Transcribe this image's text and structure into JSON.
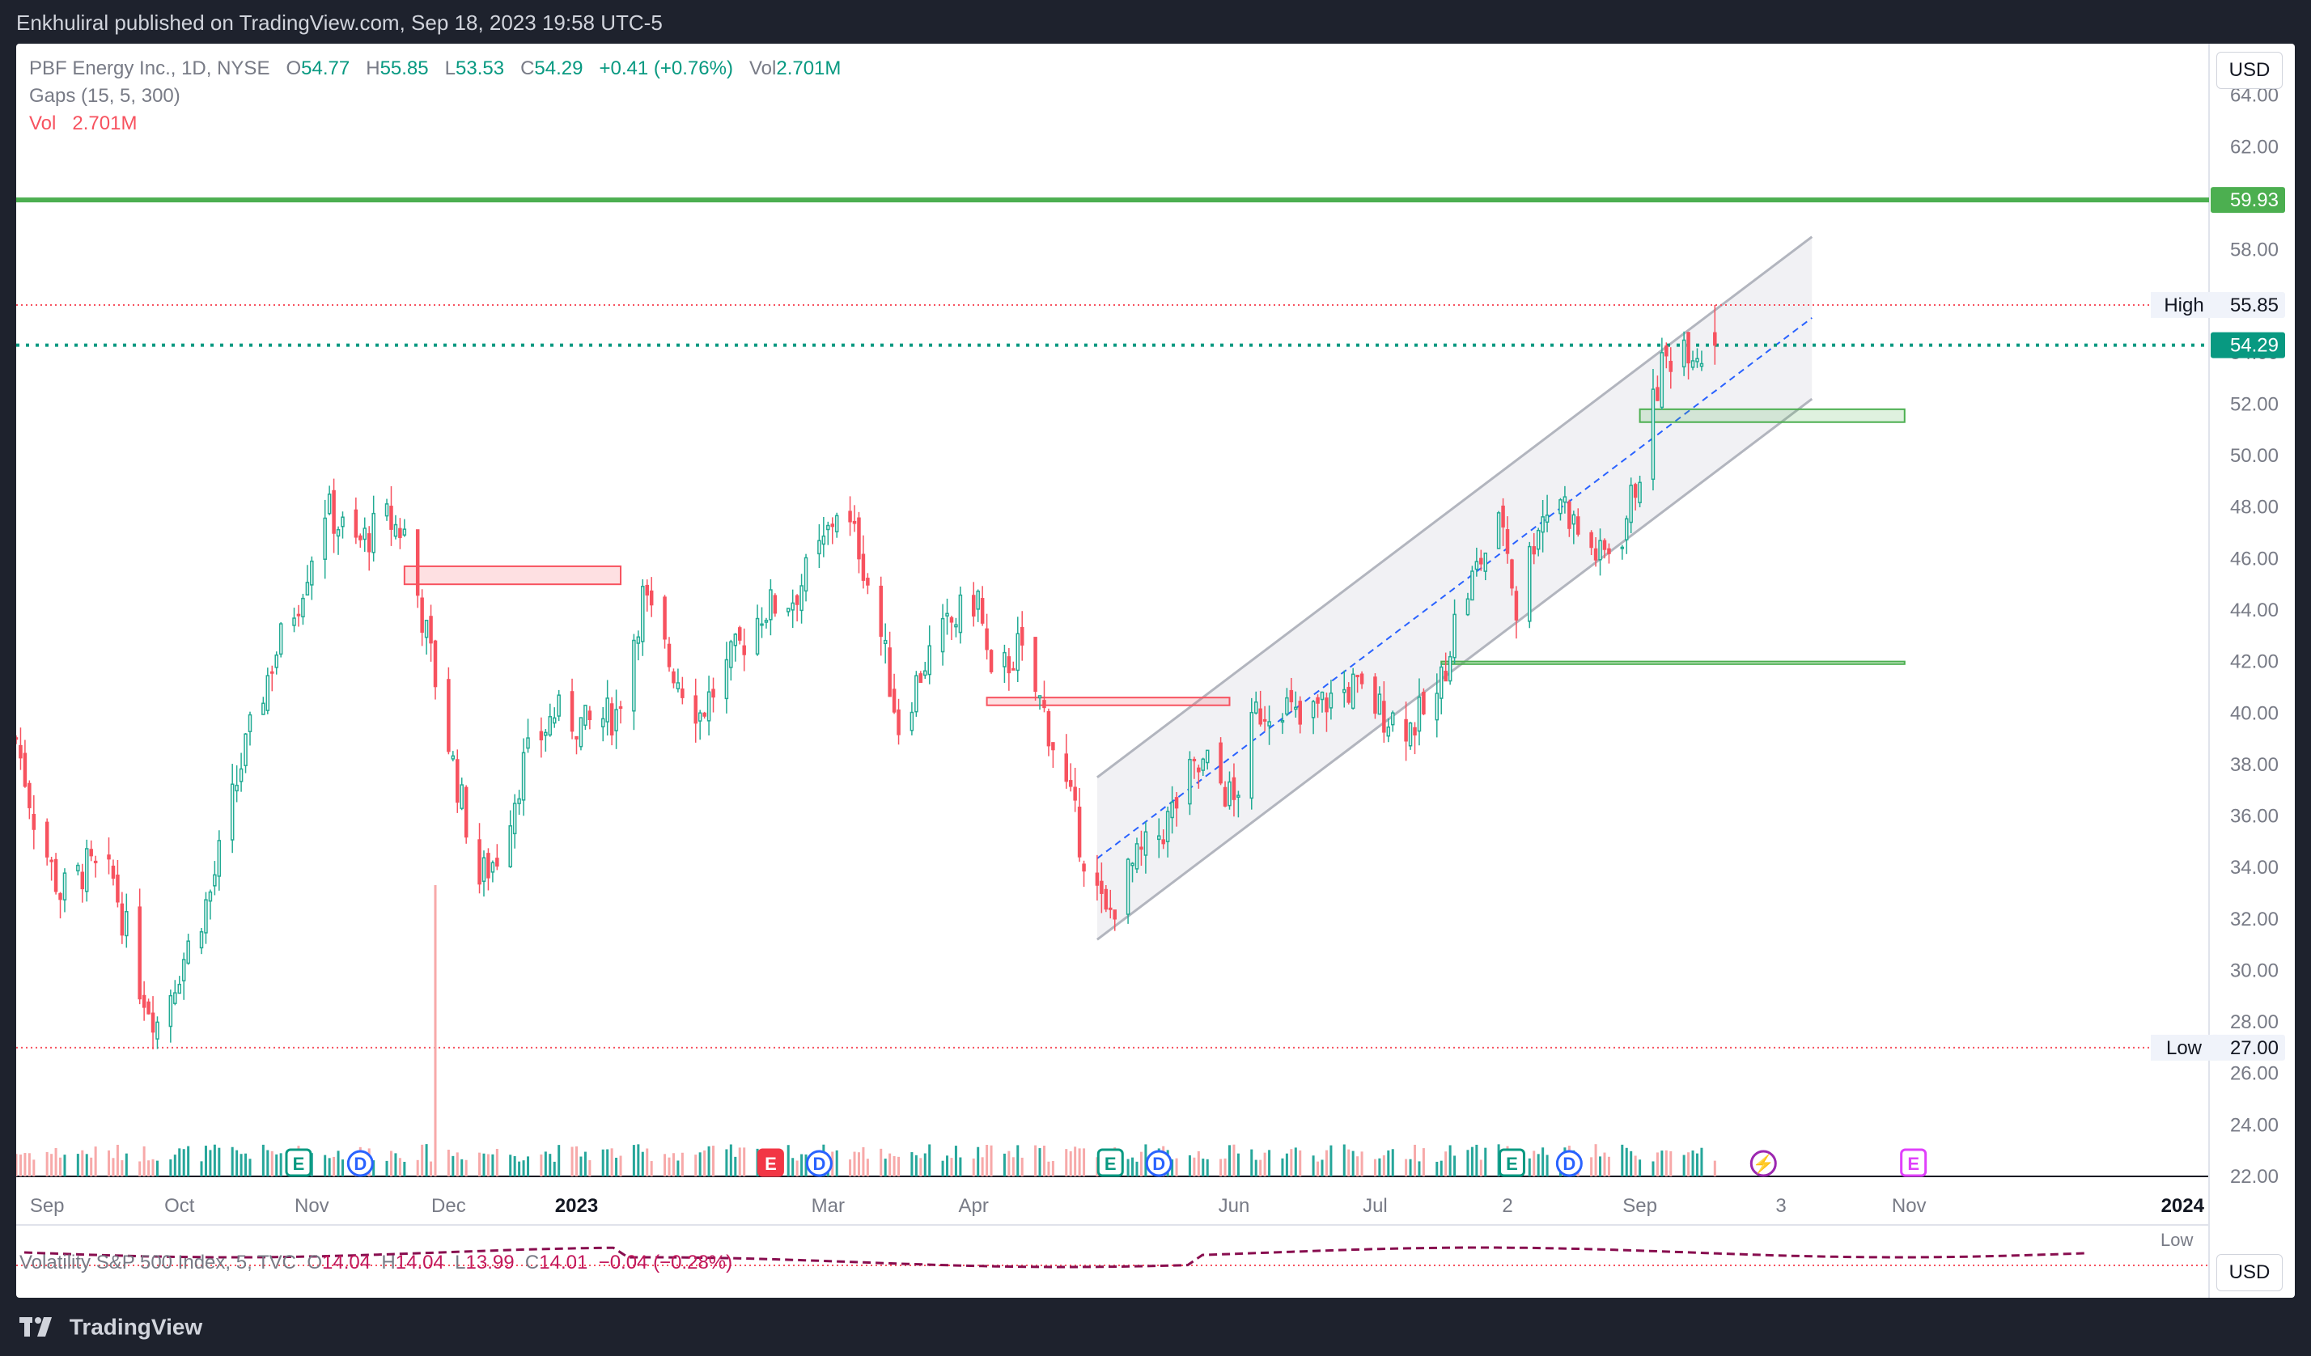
{
  "header": {
    "publish_line": "Enkhuliral published on TradingView.com, Sep 18, 2023 19:58 UTC-5"
  },
  "legend": {
    "symbol": "PBF Energy Inc., 1D, NYSE",
    "o_label": "O",
    "o_value": "54.77",
    "h_label": "H",
    "h_value": "55.85",
    "l_label": "L",
    "l_value": "53.53",
    "c_label": "C",
    "c_value": "54.29",
    "change": "+0.41 (+0.76%)",
    "vol_label": "Vol",
    "vol_value": "2.701M",
    "gaps_indicator": "Gaps (15, 5, 300)",
    "vol_indicator_label": "Vol",
    "vol_indicator_value": "2.701M"
  },
  "currency_button": "USD",
  "secondary_pane": {
    "legend_name": "Volatility S&P 500 Index, 5, TVC",
    "o_label": "O",
    "o_value": "14.04",
    "h_label": "H",
    "h_value": "14.04",
    "l_label": "L",
    "l_value": "13.99",
    "c_label": "C",
    "c_value": "14.01",
    "change": "−0.04 (−0.28%)",
    "low_tag": "Low",
    "currency_button": "USD"
  },
  "footer": {
    "brand": "TradingView"
  },
  "colors": {
    "up": "#22ab94",
    "down": "#f7525f",
    "vol_up": "#26a69a",
    "vol_down": "#f7a9a9",
    "resistance": "#4caf50",
    "channel": "#b2b5be",
    "channel_fill": "#ebebef",
    "midline": "#2962ff",
    "gap_up": "#4caf50",
    "gap_down": "#f7525f",
    "dividend": "#2962ff",
    "earnings": "#089981",
    "earnings_red": "#f23645",
    "split": "#9c27b0"
  },
  "chart_data": {
    "type": "candlestick",
    "symbol": "PBF",
    "x_range": [
      "2022-08-29",
      "2024-01-08"
    ],
    "ylim": [
      22,
      66
    ],
    "y_ticks": [
      "22.00",
      "24.00",
      "26.00",
      "28.00",
      "30.00",
      "32.00",
      "34.00",
      "36.00",
      "38.00",
      "40.00",
      "42.00",
      "44.00",
      "46.00",
      "48.00",
      "50.00",
      "52.00",
      "54.00",
      "56.00",
      "58.00",
      "60.00",
      "62.00",
      "64.00"
    ],
    "x_ticks": [
      {
        "date": "2022-09-05",
        "label": "Sep"
      },
      {
        "date": "2022-10-05",
        "label": "Oct"
      },
      {
        "date": "2022-11-04",
        "label": "Nov"
      },
      {
        "date": "2022-12-05",
        "label": "Dec"
      },
      {
        "date": "2023-01-03",
        "label": "2023",
        "bold": true
      },
      {
        "date": "2023-03-01",
        "label": "Mar"
      },
      {
        "date": "2023-04-03",
        "label": "Apr"
      },
      {
        "date": "2023-06-01",
        "label": "Jun"
      },
      {
        "date": "2023-07-03",
        "label": "Jul"
      },
      {
        "date": "2023-08-02",
        "label": "2"
      },
      {
        "date": "2023-09-01",
        "label": "Sep"
      },
      {
        "date": "2023-10-03",
        "label": "3"
      },
      {
        "date": "2023-11-01",
        "label": "Nov"
      },
      {
        "date": "2024-01-02",
        "label": "2024",
        "bold": true
      }
    ],
    "price_tags": [
      {
        "value": 59.93,
        "label": "59.93",
        "kind": "resistance"
      },
      {
        "value": 55.85,
        "label": "55.85",
        "kind": "high",
        "tag": "High"
      },
      {
        "value": 54.29,
        "label": "54.29",
        "kind": "last"
      },
      {
        "value": 27.0,
        "label": "27.00",
        "kind": "low",
        "tag": "Low"
      }
    ],
    "horizontal_lines": [
      {
        "value": 59.93,
        "style": "solid",
        "color": "#4caf50"
      },
      {
        "value": 55.85,
        "style": "dotted",
        "color": "#f7525f"
      },
      {
        "value": 54.29,
        "style": "dotted",
        "color": "#089981"
      },
      {
        "value": 27.0,
        "style": "dotted",
        "color": "#f7525f"
      }
    ],
    "channel": {
      "start": "2023-05-01",
      "end": "2023-10-10",
      "upper": [
        37.5,
        58.5
      ],
      "lower": [
        31.2,
        52.2
      ],
      "mid": [
        34.35,
        55.35
      ]
    },
    "gaps": [
      {
        "from": "2022-11-25",
        "to": "2023-01-13",
        "lo": 45.0,
        "hi": 45.7,
        "dir": "down"
      },
      {
        "from": "2023-04-06",
        "to": "2023-05-31",
        "lo": 40.3,
        "hi": 40.6,
        "dir": "down"
      },
      {
        "from": "2023-07-18",
        "to": "2023-10-31",
        "lo": 41.9,
        "hi": 42.0,
        "dir": "up"
      },
      {
        "from": "2023-09-01",
        "to": "2023-10-31",
        "lo": 51.3,
        "hi": 51.8,
        "dir": "up"
      }
    ],
    "events": [
      {
        "date": "2022-11-01",
        "kind": "earnings",
        "label": "E"
      },
      {
        "date": "2022-11-15",
        "kind": "dividend",
        "label": "D"
      },
      {
        "date": "2023-02-16",
        "kind": "earnings_red",
        "label": "E"
      },
      {
        "date": "2023-02-27",
        "kind": "dividend",
        "label": "D"
      },
      {
        "date": "2023-05-04",
        "kind": "earnings",
        "label": "E"
      },
      {
        "date": "2023-05-15",
        "kind": "dividend",
        "label": "D"
      },
      {
        "date": "2023-08-03",
        "kind": "earnings",
        "label": "E"
      },
      {
        "date": "2023-08-16",
        "kind": "dividend",
        "label": "D"
      },
      {
        "date": "2023-09-29",
        "kind": "split",
        "label": "⚡"
      },
      {
        "date": "2023-11-02",
        "kind": "earnings_future",
        "label": "E"
      }
    ],
    "price_path": [
      [
        "2022-08-29",
        39.0
      ],
      [
        "2022-09-02",
        36.0
      ],
      [
        "2022-09-08",
        33.0
      ],
      [
        "2022-09-14",
        34.0
      ],
      [
        "2022-09-20",
        33.5
      ],
      [
        "2022-09-26",
        29.5
      ],
      [
        "2022-09-30",
        28.0
      ],
      [
        "2022-10-06",
        30.5
      ],
      [
        "2022-10-12",
        33.0
      ],
      [
        "2022-10-19",
        38.0
      ],
      [
        "2022-10-26",
        42.0
      ],
      [
        "2022-11-01",
        44.5
      ],
      [
        "2022-11-07",
        48.0
      ],
      [
        "2022-11-14",
        46.5
      ],
      [
        "2022-11-21",
        47.5
      ],
      [
        "2022-11-25",
        47.0
      ],
      [
        "2022-11-30",
        43.0
      ],
      [
        "2022-12-06",
        38.0
      ],
      [
        "2022-12-12",
        33.5
      ],
      [
        "2022-12-16",
        34.5
      ],
      [
        "2022-12-22",
        38.0
      ],
      [
        "2022-12-29",
        40.0
      ],
      [
        "2023-01-05",
        39.5
      ],
      [
        "2023-01-12",
        40.0
      ],
      [
        "2023-01-18",
        44.5
      ],
      [
        "2023-01-24",
        42.0
      ],
      [
        "2023-01-31",
        40.0
      ],
      [
        "2023-02-07",
        42.0
      ],
      [
        "2023-02-14",
        44.0
      ],
      [
        "2023-02-21",
        44.5
      ],
      [
        "2023-02-28",
        46.5
      ],
      [
        "2023-03-03",
        48.0
      ],
      [
        "2023-03-08",
        46.5
      ],
      [
        "2023-03-13",
        43.0
      ],
      [
        "2023-03-17",
        39.5
      ],
      [
        "2023-03-23",
        42.0
      ],
      [
        "2023-03-29",
        43.5
      ],
      [
        "2023-04-04",
        44.5
      ],
      [
        "2023-04-07",
        41.0
      ],
      [
        "2023-04-13",
        42.5
      ],
      [
        "2023-04-19",
        40.0
      ],
      [
        "2023-04-25",
        36.5
      ],
      [
        "2023-04-28",
        34.5
      ],
      [
        "2023-05-03",
        32.0
      ],
      [
        "2023-05-09",
        34.0
      ],
      [
        "2023-05-16",
        35.5
      ],
      [
        "2023-05-22",
        37.5
      ],
      [
        "2023-05-26",
        38.0
      ],
      [
        "2023-06-01",
        36.5
      ],
      [
        "2023-06-06",
        40.0
      ],
      [
        "2023-06-12",
        40.5
      ],
      [
        "2023-06-16",
        39.5
      ],
      [
        "2023-06-22",
        40.5
      ],
      [
        "2023-06-28",
        41.0
      ],
      [
        "2023-07-05",
        40.0
      ],
      [
        "2023-07-11",
        39.5
      ],
      [
        "2023-07-17",
        40.5
      ],
      [
        "2023-07-21",
        43.5
      ],
      [
        "2023-07-27",
        46.0
      ],
      [
        "2023-08-01",
        47.5
      ],
      [
        "2023-08-04",
        44.0
      ],
      [
        "2023-08-09",
        47.5
      ],
      [
        "2023-08-14",
        48.5
      ],
      [
        "2023-08-18",
        47.0
      ],
      [
        "2023-08-23",
        46.0
      ],
      [
        "2023-08-28",
        47.0
      ],
      [
        "2023-09-01",
        49.5
      ],
      [
        "2023-09-06",
        53.5
      ],
      [
        "2023-09-11",
        54.5
      ],
      [
        "2023-09-15",
        54.0
      ],
      [
        "2023-09-18",
        54.29
      ]
    ],
    "last": {
      "open": 54.77,
      "high": 55.85,
      "low": 53.53,
      "close": 54.29,
      "volume": "2.701M"
    }
  }
}
